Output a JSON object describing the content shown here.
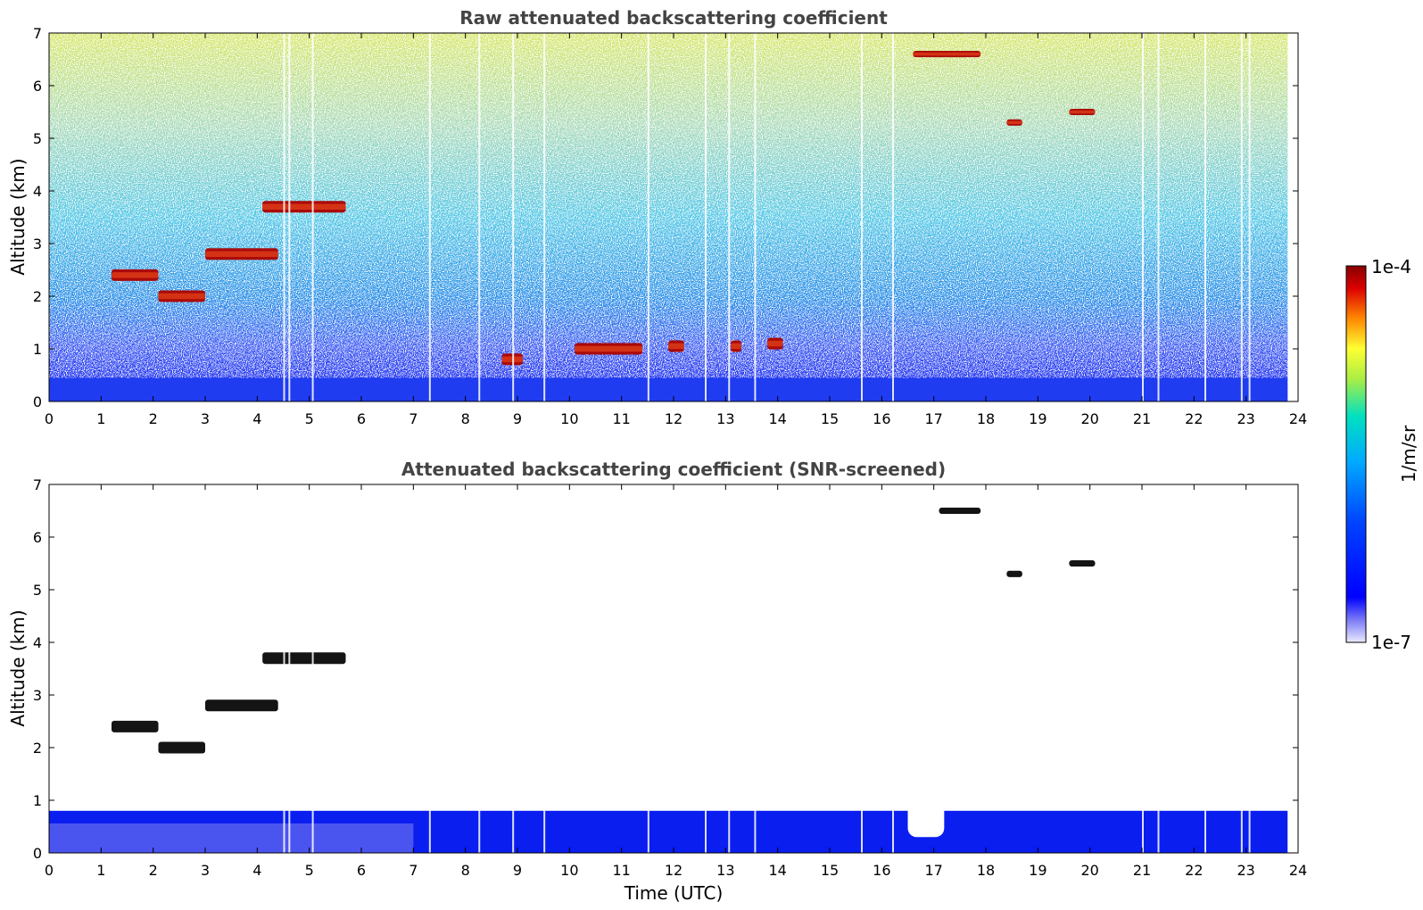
{
  "chart_data": [
    {
      "type": "heatmap",
      "title": "Raw attenuated backscattering coefficient",
      "ylabel": "Altitude (km)",
      "xlabel": "",
      "xlim": [
        0,
        24
      ],
      "ylim": [
        0,
        7
      ],
      "xticks": [
        "0",
        "1",
        "2",
        "3",
        "4",
        "5",
        "6",
        "7",
        "8",
        "9",
        "10",
        "11",
        "12",
        "13",
        "14",
        "15",
        "16",
        "17",
        "18",
        "19",
        "20",
        "21",
        "22",
        "23",
        "24"
      ],
      "yticks": [
        "0",
        "1",
        "2",
        "3",
        "4",
        "5",
        "6",
        "7"
      ],
      "features": [
        {
          "name": "cloud",
          "t_start": 1.2,
          "t_end": 2.1,
          "alt": 2.4
        },
        {
          "name": "cloud",
          "t_start": 2.1,
          "t_end": 3.0,
          "alt": 2.0
        },
        {
          "name": "cloud",
          "t_start": 3.0,
          "t_end": 4.4,
          "alt": 2.8
        },
        {
          "name": "cloud",
          "t_start": 4.1,
          "t_end": 5.7,
          "alt": 3.7
        },
        {
          "name": "cloud",
          "t_start": 8.7,
          "t_end": 9.1,
          "alt": 0.8
        },
        {
          "name": "cloud",
          "t_start": 10.1,
          "t_end": 11.4,
          "alt": 1.0
        },
        {
          "name": "cloud",
          "t_start": 11.9,
          "t_end": 12.2,
          "alt": 1.05
        },
        {
          "name": "cloud",
          "t_start": 13.1,
          "t_end": 13.3,
          "alt": 1.05
        },
        {
          "name": "cloud",
          "t_start": 13.8,
          "t_end": 14.1,
          "alt": 1.1
        },
        {
          "name": "cirrus",
          "t_start": 16.6,
          "t_end": 17.9,
          "alt": 6.6
        },
        {
          "name": "cirrus",
          "t_start": 18.4,
          "t_end": 18.7,
          "alt": 5.3
        },
        {
          "name": "cirrus",
          "t_start": 19.6,
          "t_end": 20.1,
          "alt": 5.5
        }
      ]
    },
    {
      "type": "heatmap",
      "title": "Attenuated backscattering coefficient (SNR-screened)",
      "ylabel": "Altitude (km)",
      "xlabel": "Time (UTC)",
      "xlim": [
        0,
        24
      ],
      "ylim": [
        0,
        7
      ],
      "xticks": [
        "0",
        "1",
        "2",
        "3",
        "4",
        "5",
        "6",
        "7",
        "8",
        "9",
        "10",
        "11",
        "12",
        "13",
        "14",
        "15",
        "16",
        "17",
        "18",
        "19",
        "20",
        "21",
        "22",
        "23",
        "24"
      ],
      "yticks": [
        "0",
        "1",
        "2",
        "3",
        "4",
        "5",
        "6",
        "7"
      ],
      "features": [
        {
          "name": "boundary layer",
          "t_start": 0,
          "t_end": 23.8,
          "alt": 0.8
        },
        {
          "name": "gap",
          "t_start": 16.5,
          "t_end": 17.2,
          "alt": 0.3
        },
        {
          "name": "cloud",
          "t_start": 1.2,
          "t_end": 2.1,
          "alt": 2.4
        },
        {
          "name": "cloud",
          "t_start": 2.1,
          "t_end": 3.0,
          "alt": 2.0
        },
        {
          "name": "cloud",
          "t_start": 3.0,
          "t_end": 4.4,
          "alt": 2.8
        },
        {
          "name": "cloud",
          "t_start": 4.1,
          "t_end": 5.7,
          "alt": 3.7
        },
        {
          "name": "cirrus",
          "t_start": 17.1,
          "t_end": 17.9,
          "alt": 6.5
        },
        {
          "name": "cirrus",
          "t_start": 18.4,
          "t_end": 18.7,
          "alt": 5.3
        },
        {
          "name": "cirrus",
          "t_start": 19.6,
          "t_end": 20.1,
          "alt": 5.5
        }
      ]
    }
  ],
  "colorbar": {
    "label": "1/m/sr",
    "max_label": "1e-4",
    "min_label": "1e-7",
    "colors": [
      "#eaeaff",
      "#0000ff",
      "#00aaff",
      "#00e0c0",
      "#ffff33",
      "#ff8800",
      "#dd0000",
      "#880000"
    ],
    "scale": "log"
  }
}
